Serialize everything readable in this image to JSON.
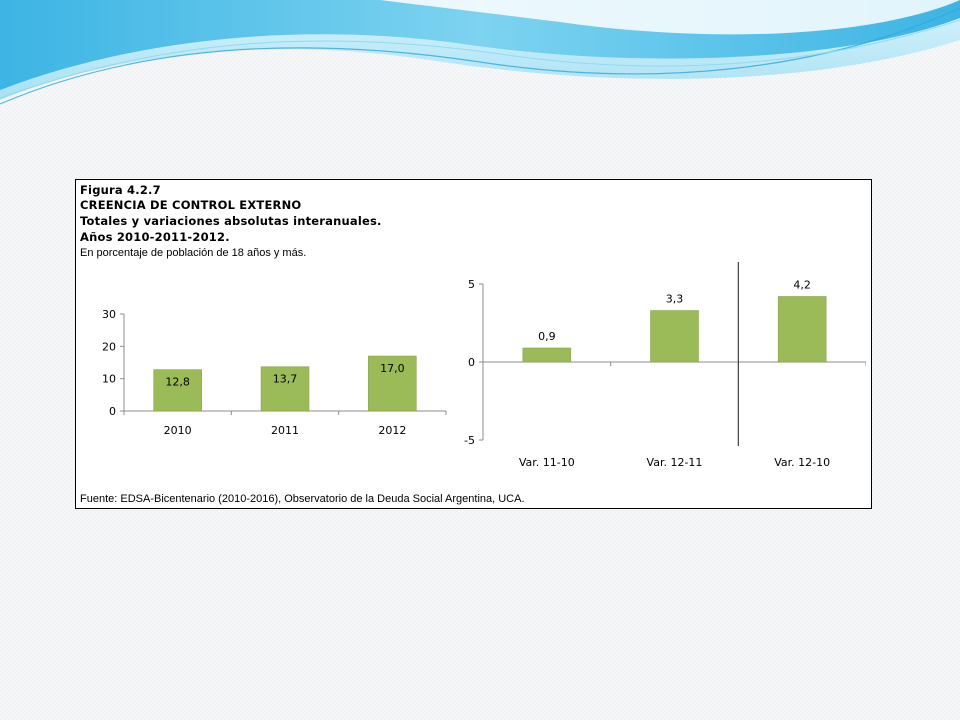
{
  "colors": {
    "bar": "#9bbb59",
    "bar_outline": "#7f9e45",
    "axis": "#8c8c8c",
    "divider": "#404040",
    "wave_dark": "#41b6e6",
    "wave_light": "#bfeaf7"
  },
  "figure": {
    "number": "Figura 4.2.7",
    "title": "CREENCIA DE CONTROL EXTERNO",
    "subtitle": "Totales y variaciones absolutas interanuales.",
    "years": "Años 2010-2011-2012.",
    "units": "En porcentaje de población de 18 años y más.",
    "source": "Fuente: EDSA-Bicentenario (2010-2016), Observatorio de la Deuda Social Argentina, UCA."
  },
  "chart_data": [
    {
      "type": "bar",
      "categories": [
        "2010",
        "2011",
        "2012"
      ],
      "values": [
        12.8,
        13.7,
        17.0
      ],
      "value_labels": [
        "12,8",
        "13,7",
        "17,0"
      ],
      "yticks": [
        "0",
        "10",
        "20",
        "30"
      ],
      "ylim": [
        0,
        30
      ],
      "xlabel": "",
      "ylabel": "",
      "grid": false,
      "legend": "none"
    },
    {
      "type": "bar",
      "categories": [
        "Var. 11-10",
        "Var. 12-11",
        "Var. 12-10"
      ],
      "values": [
        0.9,
        3.3,
        4.2
      ],
      "value_labels": [
        "0,9",
        "3,3",
        "4,2"
      ],
      "yticks": [
        "-5",
        "0",
        "5"
      ],
      "ylim": [
        -5,
        5
      ],
      "xlabel": "",
      "ylabel": "",
      "grid": false,
      "legend": "none",
      "divider_before_category": 2
    }
  ]
}
